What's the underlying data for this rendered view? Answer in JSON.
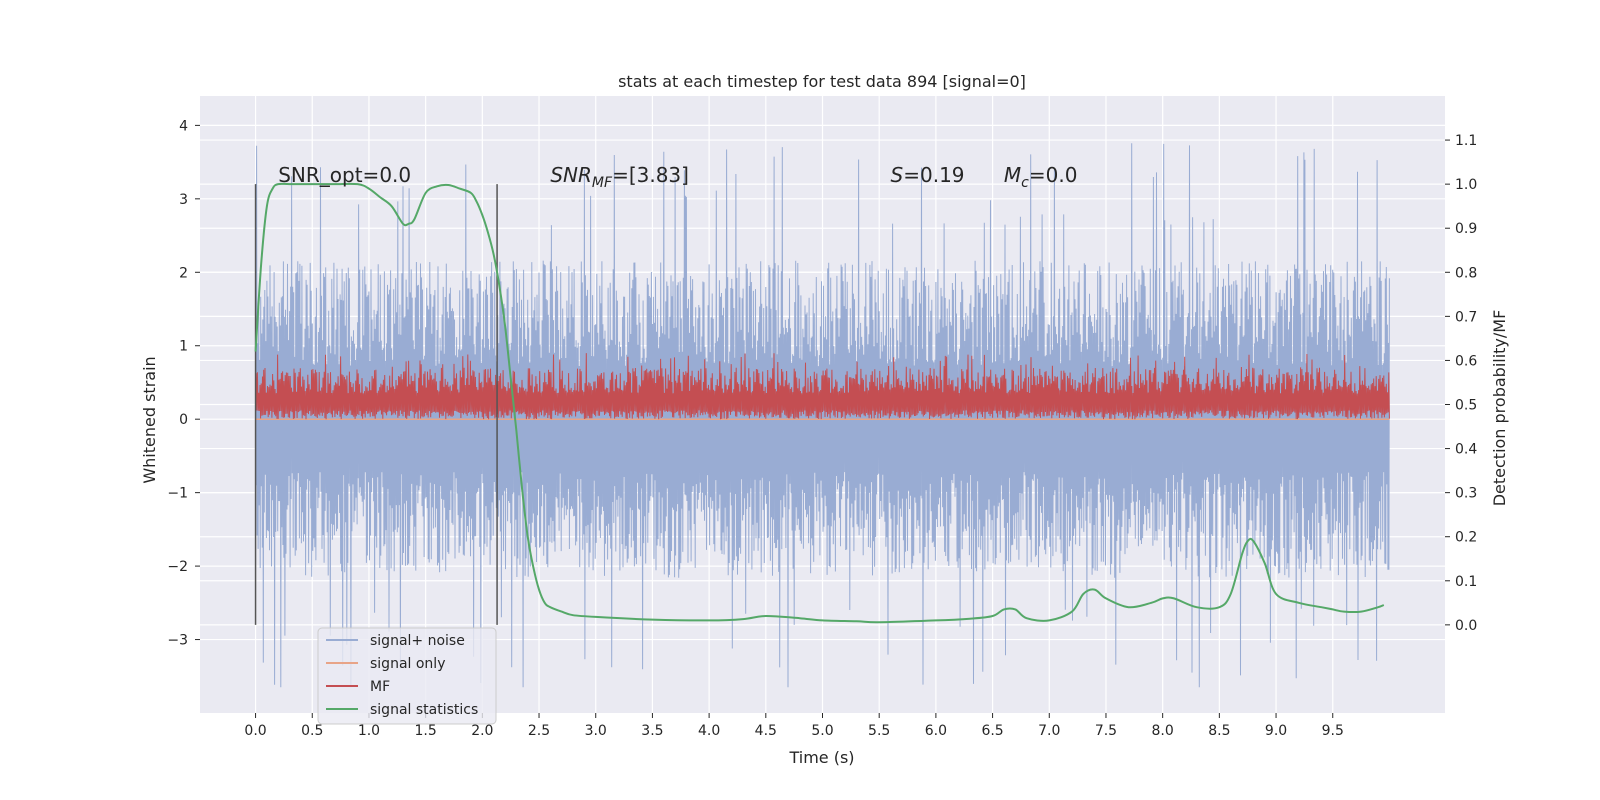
{
  "chart_data": {
    "type": "line",
    "title": "stats at each timestep for test data 894 [signal=0]",
    "xlabel": "Time (s)",
    "ylabel_left": "Whitened strain",
    "ylabel_right": "Detection probability/MF",
    "xlim": [
      -0.49,
      10.49
    ],
    "ylim_left": [
      -4.0,
      4.4
    ],
    "ylim_right": [
      -0.2,
      1.2
    ],
    "x_ticks": [
      0.0,
      0.5,
      1.0,
      1.5,
      2.0,
      2.5,
      3.0,
      3.5,
      4.0,
      4.5,
      5.0,
      5.5,
      6.0,
      6.5,
      7.0,
      7.5,
      8.0,
      8.5,
      9.0,
      9.5
    ],
    "x_tick_labels": [
      "0.0",
      "0.5",
      "1.0",
      "1.5",
      "2.0",
      "2.5",
      "3.0",
      "3.5",
      "4.0",
      "4.5",
      "5.0",
      "5.5",
      "6.0",
      "6.5",
      "7.0",
      "7.5",
      "8.0",
      "8.5",
      "9.0",
      "9.5"
    ],
    "y_left_ticks": [
      4,
      3,
      2,
      1,
      0,
      -1,
      -2,
      -3
    ],
    "y_left_tick_labels": [
      "4",
      "3",
      "2",
      "1",
      "0",
      "−1",
      "−2",
      "−3"
    ],
    "y_right_ticks": [
      1.1,
      1.0,
      0.9,
      0.8,
      0.7,
      0.6,
      0.5,
      0.4,
      0.3,
      0.2,
      0.1,
      0.0
    ],
    "y_right_tick_labels": [
      "1.1",
      "1.0",
      "0.9",
      "0.8",
      "0.7",
      "0.6",
      "0.5",
      "0.4",
      "0.3",
      "0.2",
      "0.1",
      "0.0"
    ],
    "grid": true,
    "legend_position": "lower-left",
    "colors": {
      "background": "#eaeaf2",
      "grid": "#ffffff",
      "signal_noise": "#99acd3",
      "signal_only": "#e8a487",
      "mf": "#c44e52",
      "signal_statistics": "#55a868",
      "vlines": "#555555"
    },
    "series": [
      {
        "name": "signal+ noise",
        "axis": "left",
        "x_range": [
          0.0,
          10.0
        ],
        "center": 0.0,
        "typical_half_range": 1.6,
        "max": 4.05,
        "min": -3.65
      },
      {
        "name": "signal only",
        "axis": "left",
        "x": [
          0.0,
          10.0
        ],
        "y": [
          0.0,
          0.0
        ]
      },
      {
        "name": "MF",
        "axis": "left",
        "x_range": [
          0.0,
          10.0
        ],
        "low": 0.0,
        "base": 0.15,
        "high": 0.9
      },
      {
        "name": "signal statistics",
        "axis": "right",
        "x": [
          0.0,
          0.05,
          0.1,
          0.15,
          0.2,
          0.3,
          0.5,
          0.7,
          0.9,
          1.0,
          1.1,
          1.2,
          1.3,
          1.35,
          1.4,
          1.5,
          1.6,
          1.7,
          1.8,
          1.9,
          1.95,
          2.0,
          2.05,
          2.1,
          2.15,
          2.2,
          2.25,
          2.3,
          2.35,
          2.4,
          2.45,
          2.5,
          2.55,
          2.6,
          2.7,
          2.8,
          3.0,
          3.5,
          4.0,
          4.3,
          4.5,
          4.8,
          5.0,
          5.3,
          5.5,
          6.0,
          6.3,
          6.5,
          6.6,
          6.7,
          6.8,
          7.0,
          7.2,
          7.3,
          7.4,
          7.5,
          7.7,
          7.9,
          8.0,
          8.1,
          8.3,
          8.5,
          8.6,
          8.7,
          8.75,
          8.8,
          8.9,
          9.0,
          9.2,
          9.4,
          9.5,
          9.6,
          9.75,
          9.9,
          9.95
        ],
        "y": [
          0.62,
          0.82,
          0.95,
          0.99,
          1.0,
          1.0,
          1.0,
          1.0,
          1.0,
          0.99,
          0.97,
          0.95,
          0.91,
          0.91,
          0.92,
          0.98,
          0.995,
          0.998,
          0.99,
          0.98,
          0.96,
          0.93,
          0.89,
          0.84,
          0.77,
          0.68,
          0.56,
          0.44,
          0.31,
          0.2,
          0.13,
          0.08,
          0.05,
          0.04,
          0.03,
          0.022,
          0.018,
          0.012,
          0.01,
          0.013,
          0.02,
          0.015,
          0.01,
          0.008,
          0.006,
          0.01,
          0.014,
          0.02,
          0.035,
          0.035,
          0.015,
          0.01,
          0.03,
          0.07,
          0.08,
          0.06,
          0.04,
          0.05,
          0.06,
          0.06,
          0.04,
          0.04,
          0.07,
          0.16,
          0.19,
          0.19,
          0.14,
          0.07,
          0.05,
          0.04,
          0.035,
          0.03,
          0.03,
          0.04,
          0.045
        ]
      }
    ],
    "vertical_lines": [
      {
        "x": 0.0,
        "y_range_right": [
          0.0,
          1.0
        ]
      },
      {
        "x": 2.13,
        "y_range_right": [
          0.0,
          1.0
        ]
      }
    ],
    "annotations": [
      {
        "x": 0.2,
        "y_right": 1.0,
        "text": "SNR_opt=0.0",
        "style": "normal"
      },
      {
        "x": 2.6,
        "y_right": 1.0,
        "base": "SNR",
        "sub": "MF",
        "rest": "=[3.83]",
        "style": "math"
      },
      {
        "x": 5.6,
        "y_right": 1.0,
        "base": "S",
        "sub": "",
        "rest": "=0.19",
        "style": "math"
      },
      {
        "x": 6.6,
        "y_right": 1.0,
        "base": "M",
        "sub": "c",
        "rest": "=0.0",
        "style": "math"
      }
    ],
    "legend": [
      "signal+ noise",
      "signal only",
      "MF",
      "signal statistics"
    ]
  }
}
